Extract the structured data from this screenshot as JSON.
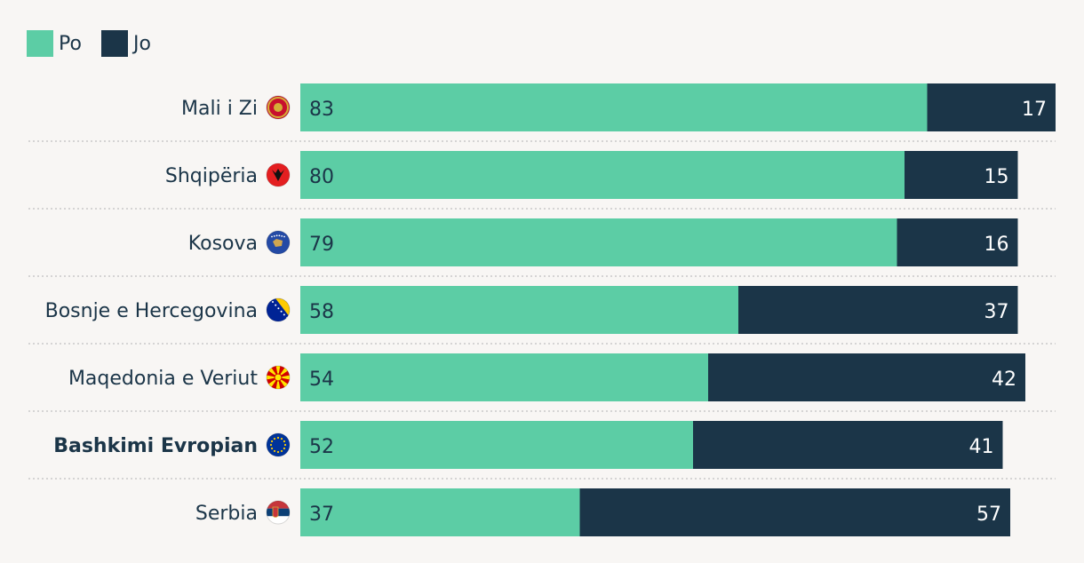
{
  "colors": {
    "po": "#5ccda5",
    "jo": "#1b3548",
    "text_dark": "#1b3548",
    "text_light": "#ffffff"
  },
  "legend": [
    {
      "label": "Po",
      "color": "#5ccda5"
    },
    {
      "label": "Jo",
      "color": "#1b3548"
    }
  ],
  "chart_data": {
    "type": "bar",
    "orientation": "horizontal",
    "stacked": true,
    "categories": [
      "Mali i Zi",
      "Shqipëria",
      "Kosova",
      "Bosnje e Hercegovina",
      "Maqedonia e Veriut",
      "Bashkimi Evropian",
      "Serbia"
    ],
    "flag_icons": [
      "montenegro-flag-icon",
      "albania-flag-icon",
      "kosovo-flag-icon",
      "bosnia-flag-icon",
      "north-macedonia-flag-icon",
      "eu-flag-icon",
      "serbia-flag-icon"
    ],
    "highlighted_category": "Bashkimi Evropian",
    "series": [
      {
        "name": "Po",
        "values": [
          83,
          80,
          79,
          58,
          54,
          52,
          37
        ]
      },
      {
        "name": "Jo",
        "values": [
          17,
          15,
          16,
          37,
          42,
          41,
          57
        ]
      }
    ],
    "xlim": [
      0,
      100
    ],
    "legend_position": "top-left",
    "grid": false
  }
}
